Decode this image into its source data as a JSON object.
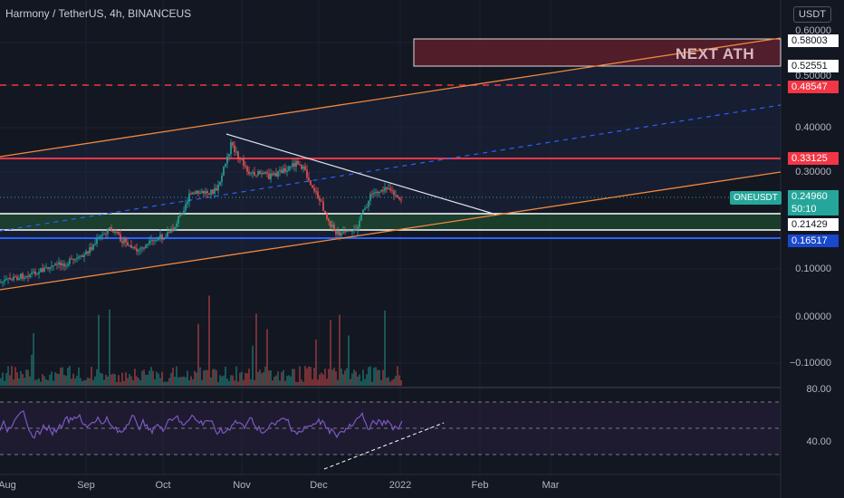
{
  "header": {
    "title": "Harmony / TetherUS, 4h, BINANCEUS",
    "currency": "USDT"
  },
  "price_axis": {
    "labels": [
      "0.60000",
      "0.50000",
      "0.40000",
      "0.30000",
      "0.10000",
      "0.00000",
      "−0.10000"
    ]
  },
  "price_tags": {
    "ath_top": "0.58003",
    "ath_bottom": "0.52551",
    "red_dashed": "0.48547",
    "red_line": "0.33125",
    "current": "0.24960",
    "support": "0.21429",
    "blue_support": "0.16517"
  },
  "symbol_tag": "ONEUSDT",
  "countdown": "50:10",
  "annotation": "NEXT ATH",
  "rsi_axis": {
    "labels": [
      "80.00",
      "40.00"
    ]
  },
  "time_axis": {
    "labels": [
      "Aug",
      "Sep",
      "Oct",
      "Nov",
      "Dec",
      "2022",
      "Feb",
      "Mar"
    ]
  },
  "colors": {
    "background": "#131722",
    "up": "#26a69a",
    "down": "#ef5350",
    "channel": "#f0883e",
    "rsi": "#7e57c2",
    "red_level": "#f23645",
    "blue_level": "#1848cc"
  }
}
